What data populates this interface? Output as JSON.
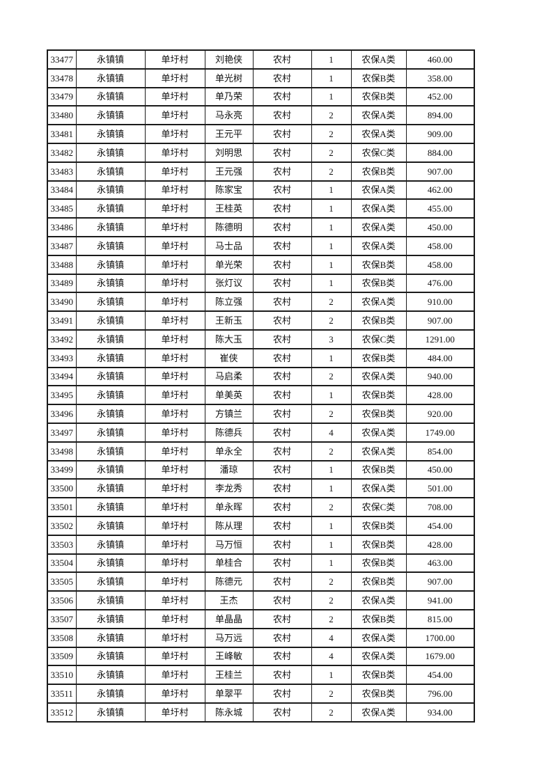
{
  "page": {
    "background_color": "#ffffff",
    "text_color": "#111111",
    "table_border_color": "#1a1a1a"
  },
  "table": {
    "rows": [
      [
        "33477",
        "永镇镇",
        "单圩村",
        "刘艳侠",
        "农村",
        "1",
        "农保A类",
        "460.00"
      ],
      [
        "33478",
        "永镇镇",
        "单圩村",
        "单光树",
        "农村",
        "1",
        "农保B类",
        "358.00"
      ],
      [
        "33479",
        "永镇镇",
        "单圩村",
        "单乃荣",
        "农村",
        "1",
        "农保B类",
        "452.00"
      ],
      [
        "33480",
        "永镇镇",
        "单圩村",
        "马永亮",
        "农村",
        "2",
        "农保A类",
        "894.00"
      ],
      [
        "33481",
        "永镇镇",
        "单圩村",
        "王元平",
        "农村",
        "2",
        "农保A类",
        "909.00"
      ],
      [
        "33482",
        "永镇镇",
        "单圩村",
        "刘明思",
        "农村",
        "2",
        "农保C类",
        "884.00"
      ],
      [
        "33483",
        "永镇镇",
        "单圩村",
        "王元强",
        "农村",
        "2",
        "农保B类",
        "907.00"
      ],
      [
        "33484",
        "永镇镇",
        "单圩村",
        "陈家宝",
        "农村",
        "1",
        "农保A类",
        "462.00"
      ],
      [
        "33485",
        "永镇镇",
        "单圩村",
        "王桂英",
        "农村",
        "1",
        "农保A类",
        "455.00"
      ],
      [
        "33486",
        "永镇镇",
        "单圩村",
        "陈德明",
        "农村",
        "1",
        "农保A类",
        "450.00"
      ],
      [
        "33487",
        "永镇镇",
        "单圩村",
        "马士品",
        "农村",
        "1",
        "农保A类",
        "458.00"
      ],
      [
        "33488",
        "永镇镇",
        "单圩村",
        "单光荣",
        "农村",
        "1",
        "农保B类",
        "458.00"
      ],
      [
        "33489",
        "永镇镇",
        "单圩村",
        "张灯议",
        "农村",
        "1",
        "农保B类",
        "476.00"
      ],
      [
        "33490",
        "永镇镇",
        "单圩村",
        "陈立强",
        "农村",
        "2",
        "农保A类",
        "910.00"
      ],
      [
        "33491",
        "永镇镇",
        "单圩村",
        "王新玉",
        "农村",
        "2",
        "农保B类",
        "907.00"
      ],
      [
        "33492",
        "永镇镇",
        "单圩村",
        "陈大玉",
        "农村",
        "3",
        "农保C类",
        "1291.00"
      ],
      [
        "33493",
        "永镇镇",
        "单圩村",
        "崔侠",
        "农村",
        "1",
        "农保B类",
        "484.00"
      ],
      [
        "33494",
        "永镇镇",
        "单圩村",
        "马启柔",
        "农村",
        "2",
        "农保A类",
        "940.00"
      ],
      [
        "33495",
        "永镇镇",
        "单圩村",
        "单美英",
        "农村",
        "1",
        "农保B类",
        "428.00"
      ],
      [
        "33496",
        "永镇镇",
        "单圩村",
        "方镇兰",
        "农村",
        "2",
        "农保B类",
        "920.00"
      ],
      [
        "33497",
        "永镇镇",
        "单圩村",
        "陈德兵",
        "农村",
        "4",
        "农保A类",
        "1749.00"
      ],
      [
        "33498",
        "永镇镇",
        "单圩村",
        "单永全",
        "农村",
        "2",
        "农保A类",
        "854.00"
      ],
      [
        "33499",
        "永镇镇",
        "单圩村",
        "潘琼",
        "农村",
        "1",
        "农保B类",
        "450.00"
      ],
      [
        "33500",
        "永镇镇",
        "单圩村",
        "李龙秀",
        "农村",
        "1",
        "农保A类",
        "501.00"
      ],
      [
        "33501",
        "永镇镇",
        "单圩村",
        "单永晖",
        "农村",
        "2",
        "农保C类",
        "708.00"
      ],
      [
        "33502",
        "永镇镇",
        "单圩村",
        "陈从理",
        "农村",
        "1",
        "农保B类",
        "454.00"
      ],
      [
        "33503",
        "永镇镇",
        "单圩村",
        "马万恒",
        "农村",
        "1",
        "农保B类",
        "428.00"
      ],
      [
        "33504",
        "永镇镇",
        "单圩村",
        "单桂合",
        "农村",
        "1",
        "农保B类",
        "463.00"
      ],
      [
        "33505",
        "永镇镇",
        "单圩村",
        "陈德元",
        "农村",
        "2",
        "农保B类",
        "907.00"
      ],
      [
        "33506",
        "永镇镇",
        "单圩村",
        "王杰",
        "农村",
        "2",
        "农保A类",
        "941.00"
      ],
      [
        "33507",
        "永镇镇",
        "单圩村",
        "单晶晶",
        "农村",
        "2",
        "农保B类",
        "815.00"
      ],
      [
        "33508",
        "永镇镇",
        "单圩村",
        "马万远",
        "农村",
        "4",
        "农保A类",
        "1700.00"
      ],
      [
        "33509",
        "永镇镇",
        "单圩村",
        "王峰敏",
        "农村",
        "4",
        "农保A类",
        "1679.00"
      ],
      [
        "33510",
        "永镇镇",
        "单圩村",
        "王桂兰",
        "农村",
        "1",
        "农保B类",
        "454.00"
      ],
      [
        "33511",
        "永镇镇",
        "单圩村",
        "单翠平",
        "农村",
        "2",
        "农保B类",
        "796.00"
      ],
      [
        "33512",
        "永镇镇",
        "单圩村",
        "陈永城",
        "农村",
        "2",
        "农保A类",
        "934.00"
      ]
    ]
  }
}
